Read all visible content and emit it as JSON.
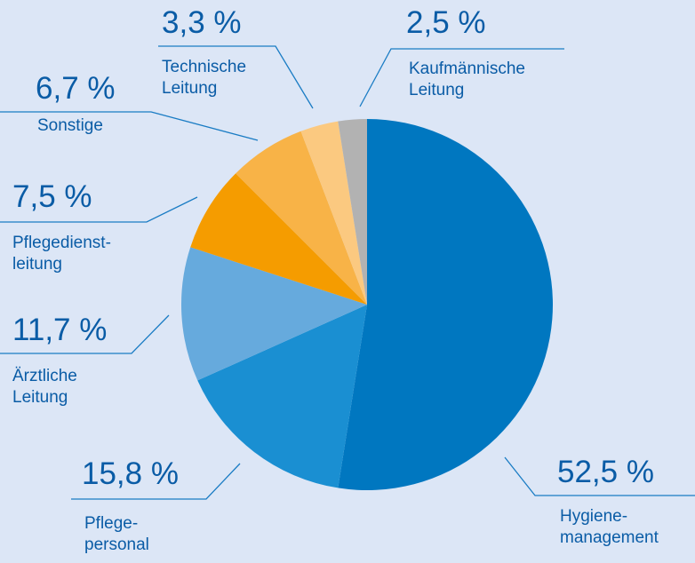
{
  "chart_data": {
    "type": "pie",
    "categories": [
      "Hygiene-\nmanagement",
      "Pflege-\npersonal",
      "Ärztliche\nLeitung",
      "Pflegedienst-\nleitung",
      "Sonstige",
      "Technische\nLeitung",
      "Kaufmännische\nLeitung"
    ],
    "values": [
      52.5,
      15.8,
      11.7,
      7.5,
      6.7,
      3.3,
      2.5
    ],
    "value_labels": [
      "52,5 %",
      "15,8 %",
      "11,7 %",
      "7,5 %",
      "6,7 %",
      "3,3 %",
      "2,5 %"
    ],
    "colors": [
      "#0077c0",
      "#1a8fd2",
      "#66aadd",
      "#f59c00",
      "#f8b347",
      "#fbc980",
      "#b2b2b2"
    ]
  }
}
